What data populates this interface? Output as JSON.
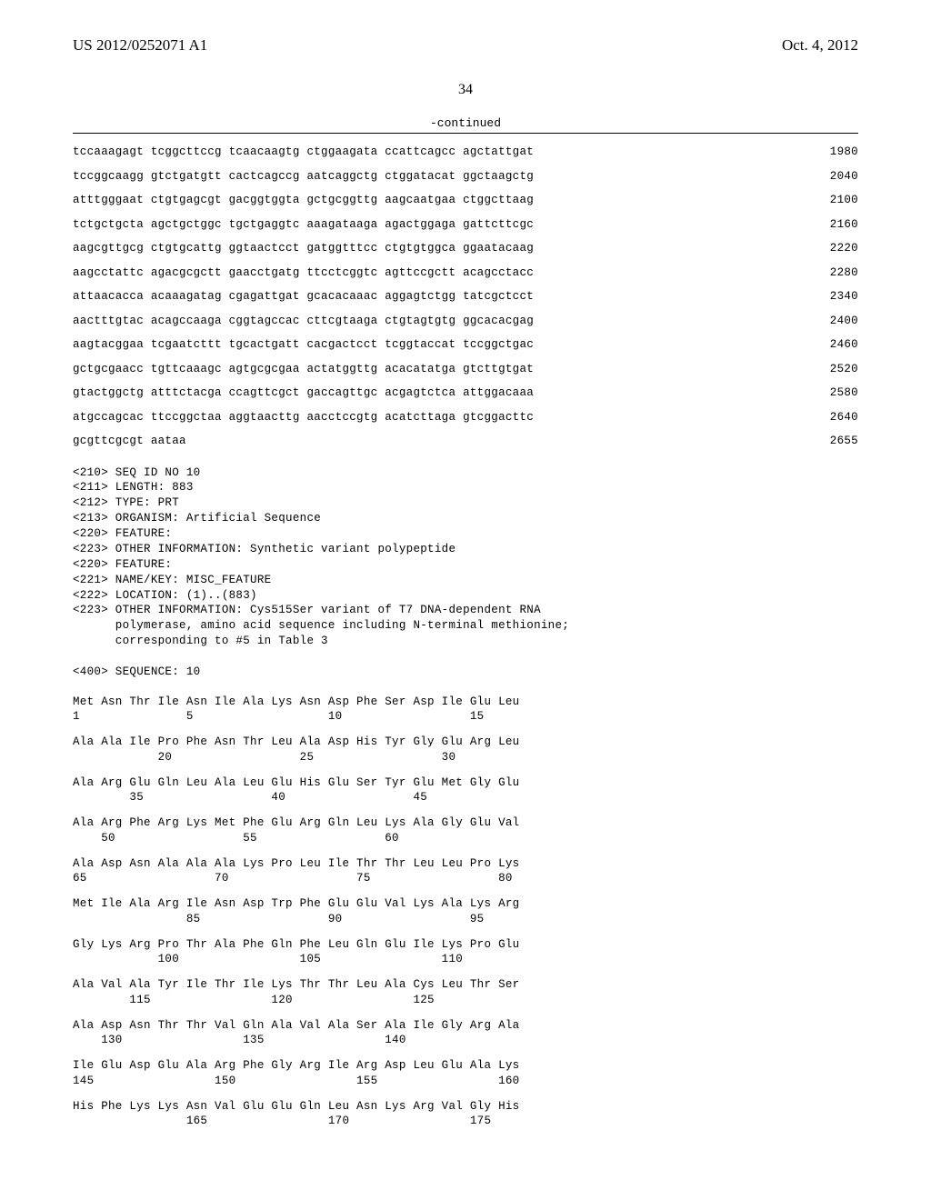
{
  "header": {
    "left": "US 2012/0252071 A1",
    "right": "Oct. 4, 2012"
  },
  "page_number": "34",
  "continued_label": "-continued",
  "nucleotide_sequence": {
    "rows": [
      {
        "text": "tccaaagagt tcggcttccg tcaacaagtg ctggaagata ccattcagcc agctattgat",
        "pos": "1980"
      },
      {
        "text": "tccggcaagg gtctgatgtt cactcagccg aatcaggctg ctggatacat ggctaagctg",
        "pos": "2040"
      },
      {
        "text": "atttgggaat ctgtgagcgt gacggtggta gctgcggttg aagcaatgaa ctggcttaag",
        "pos": "2100"
      },
      {
        "text": "tctgctgcta agctgctggc tgctgaggtc aaagataaga agactggaga gattcttcgc",
        "pos": "2160"
      },
      {
        "text": "aagcgttgcg ctgtgcattg ggtaactcct gatggtttcc ctgtgtggca ggaatacaag",
        "pos": "2220"
      },
      {
        "text": "aagcctattc agacgcgctt gaacctgatg ttcctcggtc agttccgctt acagcctacc",
        "pos": "2280"
      },
      {
        "text": "attaacacca acaaagatag cgagattgat gcacacaaac aggagtctgg tatcgctcct",
        "pos": "2340"
      },
      {
        "text": "aactttgtac acagccaaga cggtagccac cttcgtaaga ctgtagtgtg ggcacacgag",
        "pos": "2400"
      },
      {
        "text": "aagtacggaa tcgaatcttt tgcactgatt cacgactcct tcggtaccat tccggctgac",
        "pos": "2460"
      },
      {
        "text": "gctgcgaacc tgttcaaagc agtgcgcgaa actatggttg acacatatga gtcttgtgat",
        "pos": "2520"
      },
      {
        "text": "gtactggctg atttctacga ccagttcgct gaccagttgc acgagtctca attggacaaa",
        "pos": "2580"
      },
      {
        "text": "atgccagcac ttccggctaa aggtaacttg aacctccgtg acatcttaga gtcggacttc",
        "pos": "2640"
      },
      {
        "text": "gcgttcgcgt aataa",
        "pos": "2655"
      }
    ]
  },
  "metadata_lines": [
    "<210> SEQ ID NO 10",
    "<211> LENGTH: 883",
    "<212> TYPE: PRT",
    "<213> ORGANISM: Artificial Sequence",
    "<220> FEATURE:",
    "<223> OTHER INFORMATION: Synthetic variant polypeptide",
    "<220> FEATURE:",
    "<221> NAME/KEY: MISC_FEATURE",
    "<222> LOCATION: (1)..(883)",
    "<223> OTHER INFORMATION: Cys515Ser variant of T7 DNA-dependent RNA",
    "      polymerase, amino acid sequence including N-terminal methionine;",
    "      corresponding to #5 in Table 3",
    "",
    "<400> SEQUENCE: 10"
  ],
  "protein_sequence": {
    "groups": [
      {
        "aa": "Met Asn Thr Ile Asn Ile Ala Lys Asn Asp Phe Ser Asp Ile Glu Leu",
        "num": "1               5                   10                  15"
      },
      {
        "aa": "Ala Ala Ile Pro Phe Asn Thr Leu Ala Asp His Tyr Gly Glu Arg Leu",
        "num": "            20                  25                  30"
      },
      {
        "aa": "Ala Arg Glu Gln Leu Ala Leu Glu His Glu Ser Tyr Glu Met Gly Glu",
        "num": "        35                  40                  45"
      },
      {
        "aa": "Ala Arg Phe Arg Lys Met Phe Glu Arg Gln Leu Lys Ala Gly Glu Val",
        "num": "    50                  55                  60"
      },
      {
        "aa": "Ala Asp Asn Ala Ala Ala Lys Pro Leu Ile Thr Thr Leu Leu Pro Lys",
        "num": "65                  70                  75                  80"
      },
      {
        "aa": "Met Ile Ala Arg Ile Asn Asp Trp Phe Glu Glu Val Lys Ala Lys Arg",
        "num": "                85                  90                  95"
      },
      {
        "aa": "Gly Lys Arg Pro Thr Ala Phe Gln Phe Leu Gln Glu Ile Lys Pro Glu",
        "num": "            100                 105                 110"
      },
      {
        "aa": "Ala Val Ala Tyr Ile Thr Ile Lys Thr Thr Leu Ala Cys Leu Thr Ser",
        "num": "        115                 120                 125"
      },
      {
        "aa": "Ala Asp Asn Thr Thr Val Gln Ala Val Ala Ser Ala Ile Gly Arg Ala",
        "num": "    130                 135                 140"
      },
      {
        "aa": "Ile Glu Asp Glu Ala Arg Phe Gly Arg Ile Arg Asp Leu Glu Ala Lys",
        "num": "145                 150                 155                 160"
      },
      {
        "aa": "His Phe Lys Lys Asn Val Glu Glu Gln Leu Asn Lys Arg Val Gly His",
        "num": "                165                 170                 175"
      }
    ]
  }
}
